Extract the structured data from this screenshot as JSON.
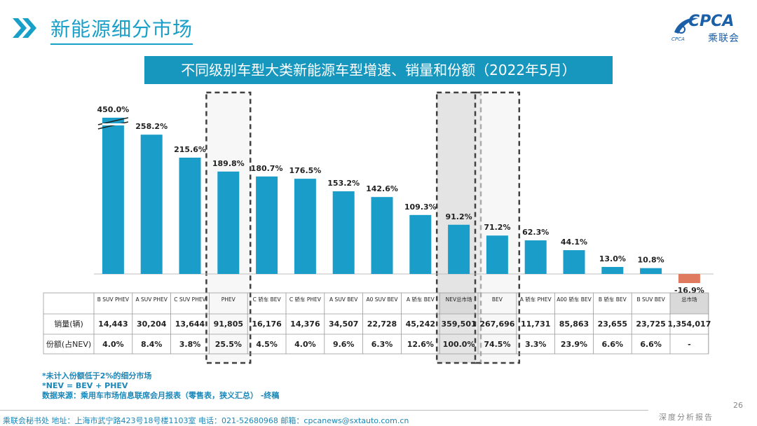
{
  "header": {
    "title": "新能源细分市场",
    "logo_brand": "CPCA",
    "logo_cn": "乘联会",
    "logo_small": "CPCA"
  },
  "banner": {
    "text": "不同级别车型大类新能源车型增速、销量和份额（2022年5月）"
  },
  "colors": {
    "bar": "#1a9ec9",
    "negative_bar": "#e07a5f",
    "highlight_fill": "#d9d9d9",
    "dashed_box": "#404040"
  },
  "chart_data": {
    "type": "bar",
    "title": "不同级别车型大类新能源车型增速、销量和份额（2022年5月）",
    "categories": [
      "B SUV PHEV",
      "A SUV PHEV",
      "C SUV PHEV",
      "PHEV",
      "C 轿车 BEV",
      "C 轿车 PHEV",
      "A SUV BEV",
      "A0 SUV BEV",
      "A 轿车 BEV",
      "NEV总市场",
      "BEV",
      "A 轿车 PHEV",
      "A00 轿车 BEV",
      "B 轿车 BEV",
      "B SUV BEV",
      "总市场"
    ],
    "values": [
      450.0,
      258.2,
      215.6,
      189.8,
      180.7,
      176.5,
      153.2,
      142.6,
      109.3,
      91.2,
      71.2,
      62.3,
      44.1,
      13.0,
      10.8,
      -16.9
    ],
    "value_labels": [
      "450.0%",
      "258.2%",
      "215.6%",
      "189.8%",
      "180.7%",
      "176.5%",
      "153.2%",
      "142.6%",
      "109.3%",
      "91.2%",
      "71.2%",
      "62.3%",
      "44.1%",
      "13.0%",
      "10.8%",
      "-16.9%"
    ],
    "axis_break_at": 0,
    "table": {
      "row_labels": [
        "销量(辆)",
        "份额(占NEV)"
      ],
      "sales": [
        "14,443",
        "30,204",
        "13,644",
        "91,805",
        "16,176",
        "14,376",
        "34,507",
        "22,728",
        "45,242",
        "359,501",
        "267,696",
        "11,731",
        "85,863",
        "23,655",
        "23,725",
        "1,354,017"
      ],
      "share": [
        "4.0%",
        "8.4%",
        "3.8%",
        "25.5%",
        "4.5%",
        "4.0%",
        "9.6%",
        "6.3%",
        "12.6%",
        "100.0%",
        "74.5%",
        "3.3%",
        "23.9%",
        "6.6%",
        "6.6%",
        "-"
      ]
    },
    "dashed_highlight": [
      3,
      9,
      10
    ],
    "filled_highlight": [
      9,
      15
    ]
  },
  "notes": [
    "*未计入份额低于2%的细分市场",
    "*NEV = BEV + PHEV",
    "数据来源：乘用车市场信息联席会月报表（零售表，狭义汇总） -终稿"
  ],
  "page_number": "26",
  "report_label": "深度分析报告",
  "footer": "乘联会秘书处   地址：上海市武宁路423号18号楼1103室  电话：021-52680968   邮箱：cpcanews@sxtauto.com.cn"
}
